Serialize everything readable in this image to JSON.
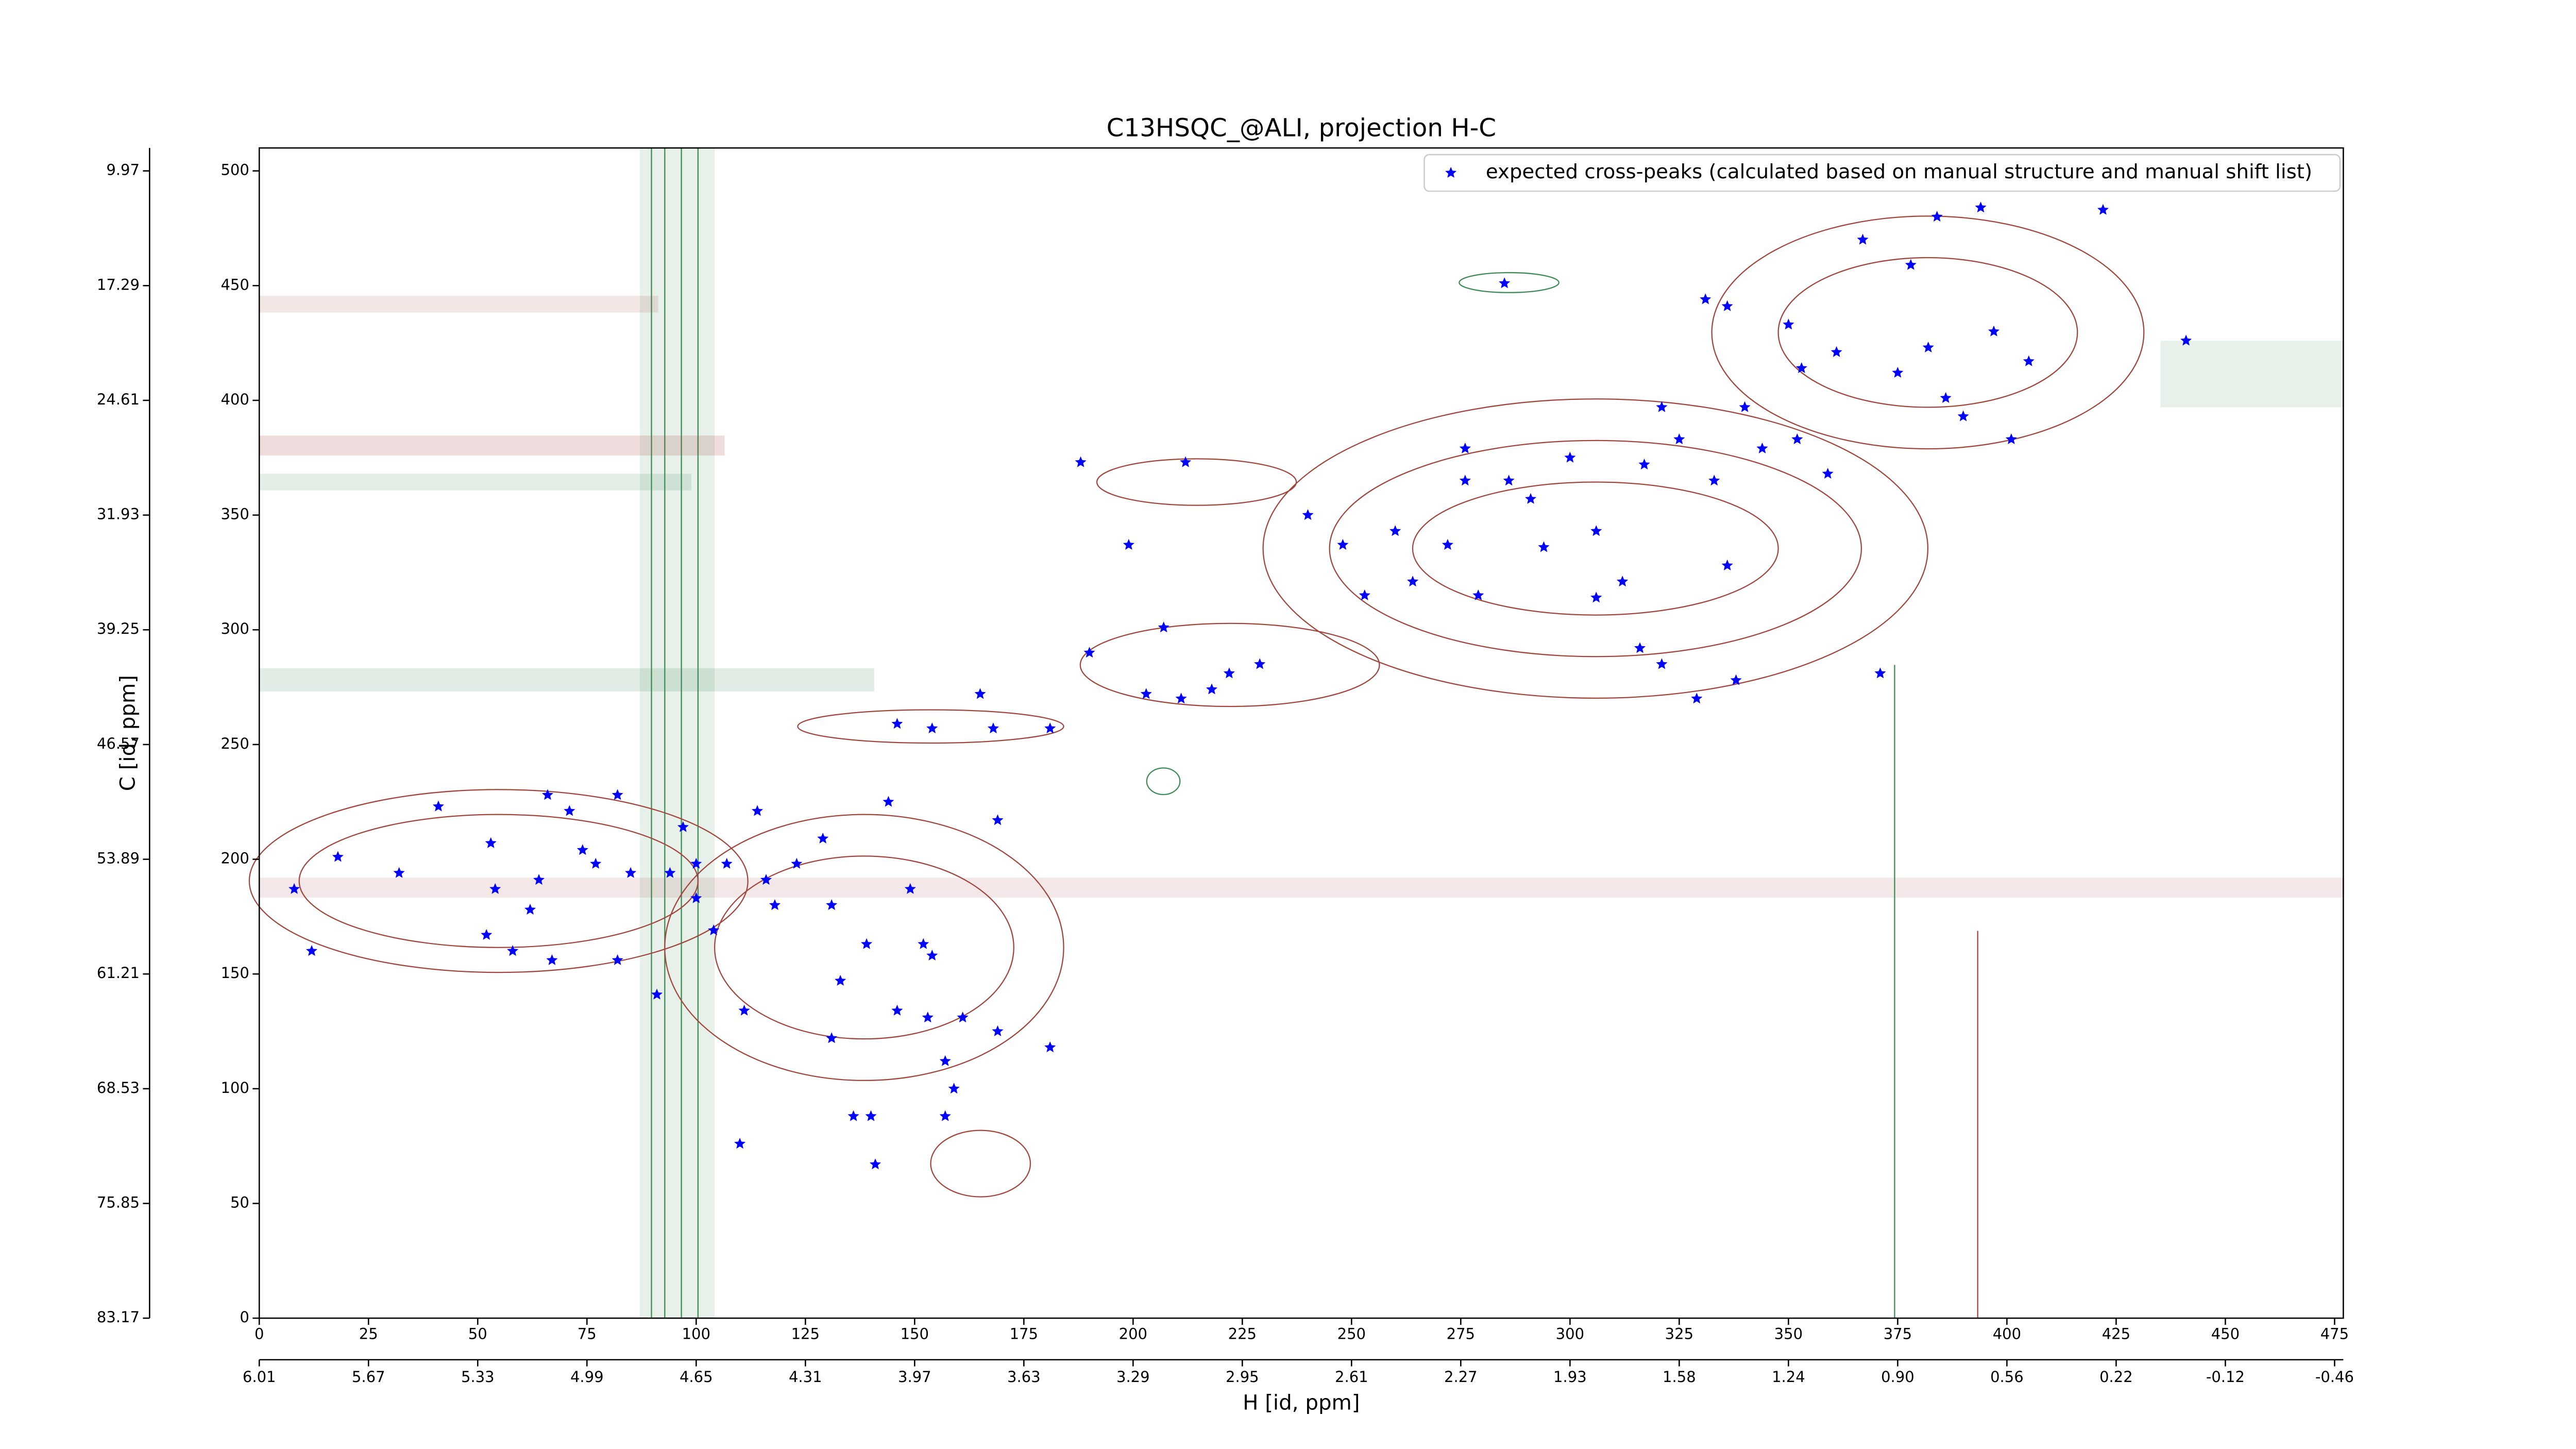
{
  "chart_data": {
    "type": "scatter",
    "title": "C13HSQC_@ALI, projection H-C",
    "x_label": "H [id, ppm]",
    "y_label": "C [id, ppm]",
    "xlim": [
      0,
      477
    ],
    "ylim": [
      0,
      510
    ],
    "xticks": [
      0,
      25,
      50,
      75,
      100,
      125,
      150,
      175,
      200,
      225,
      250,
      275,
      300,
      325,
      350,
      375,
      400,
      425,
      450,
      475
    ],
    "yticks": [
      0,
      50,
      100,
      150,
      200,
      250,
      300,
      350,
      400,
      450,
      500
    ],
    "x2ticks": [
      {
        "value": 0,
        "label": "6.01"
      },
      {
        "value": 25,
        "label": "5.67"
      },
      {
        "value": 50,
        "label": "5.33"
      },
      {
        "value": 75,
        "label": "4.99"
      },
      {
        "value": 100,
        "label": "4.65"
      },
      {
        "value": 125,
        "label": "4.31"
      },
      {
        "value": 150,
        "label": "3.97"
      },
      {
        "value": 175,
        "label": "3.63"
      },
      {
        "value": 200,
        "label": "3.29"
      },
      {
        "value": 225,
        "label": "2.95"
      },
      {
        "value": 250,
        "label": "2.61"
      },
      {
        "value": 275,
        "label": "2.27"
      },
      {
        "value": 300,
        "label": "1.93"
      },
      {
        "value": 325,
        "label": "1.58"
      },
      {
        "value": 350,
        "label": "1.24"
      },
      {
        "value": 375,
        "label": "0.90"
      },
      {
        "value": 400,
        "label": "0.56"
      },
      {
        "value": 425,
        "label": "0.22"
      },
      {
        "value": 450,
        "label": "-0.12"
      },
      {
        "value": 475,
        "label": "-0.46"
      }
    ],
    "y2ticks": [
      {
        "value": 0,
        "label": "83.17"
      },
      {
        "value": 50,
        "label": "75.85"
      },
      {
        "value": 100,
        "label": "68.53"
      },
      {
        "value": 150,
        "label": "61.21"
      },
      {
        "value": 200,
        "label": "53.89"
      },
      {
        "value": 250,
        "label": "46.57"
      },
      {
        "value": 300,
        "label": "39.25"
      },
      {
        "value": 350,
        "label": "31.93"
      },
      {
        "value": 400,
        "label": "24.61"
      },
      {
        "value": 450,
        "label": "17.29"
      },
      {
        "value": 500,
        "label": "9.97"
      }
    ],
    "legend": "upper right",
    "series": [
      {
        "name": "expected cross-peaks (calculated based on manual structure and manual shift list)",
        "color": "#0000ff",
        "x": [
          8,
          12,
          18,
          32,
          41,
          53,
          54,
          52,
          58,
          66,
          71,
          64,
          62,
          67,
          74,
          77,
          82,
          85,
          82,
          91,
          94,
          97,
          100,
          100,
          104,
          107,
          114,
          116,
          111,
          118,
          123,
          129,
          131,
          133,
          139,
          140,
          141,
          144,
          149,
          152,
          154,
          146,
          153,
          157,
          159,
          161,
          169,
          181,
          157,
          110,
          136,
          131,
          169,
          146,
          154,
          165,
          168,
          181,
          188,
          190,
          199,
          212,
          207,
          203,
          211,
          218,
          222,
          229,
          240,
          248,
          253,
          260,
          272,
          276,
          279,
          286,
          291,
          294,
          300,
          306,
          312,
          317,
          321,
          325,
          333,
          336,
          340,
          344,
          338,
          329,
          352,
          359,
          371,
          350,
          336,
          321,
          375,
          382,
          386,
          390,
          378,
          384,
          394,
          367,
          397,
          405,
          422,
          441,
          401,
          361,
          353,
          331,
          285,
          306,
          316,
          276,
          264
        ],
        "values": [
          187,
          160,
          201,
          194,
          223,
          207,
          187,
          167,
          160,
          228,
          221,
          191,
          178,
          156,
          204,
          198,
          228,
          194,
          156,
          141,
          194,
          214,
          183,
          198,
          169,
          198,
          221,
          191,
          134,
          180,
          198,
          209,
          180,
          147,
          163,
          88,
          67,
          225,
          187,
          163,
          158,
          134,
          131,
          112,
          100,
          131,
          125,
          118,
          88,
          76,
          88,
          122,
          217,
          259,
          257,
          272,
          257,
          257,
          373,
          290,
          337,
          373,
          301,
          272,
          270,
          274,
          281,
          285,
          350,
          337,
          315,
          343,
          337,
          379,
          315,
          365,
          357,
          336,
          375,
          343,
          321,
          372,
          285,
          383,
          365,
          328,
          397,
          379,
          278,
          270,
          383,
          368,
          281,
          433,
          441,
          397,
          412,
          423,
          401,
          393,
          459,
          480,
          484,
          470,
          430,
          417,
          483,
          426,
          383,
          421,
          414,
          444,
          451,
          314,
          292,
          365,
          321
        ]
      }
    ]
  }
}
